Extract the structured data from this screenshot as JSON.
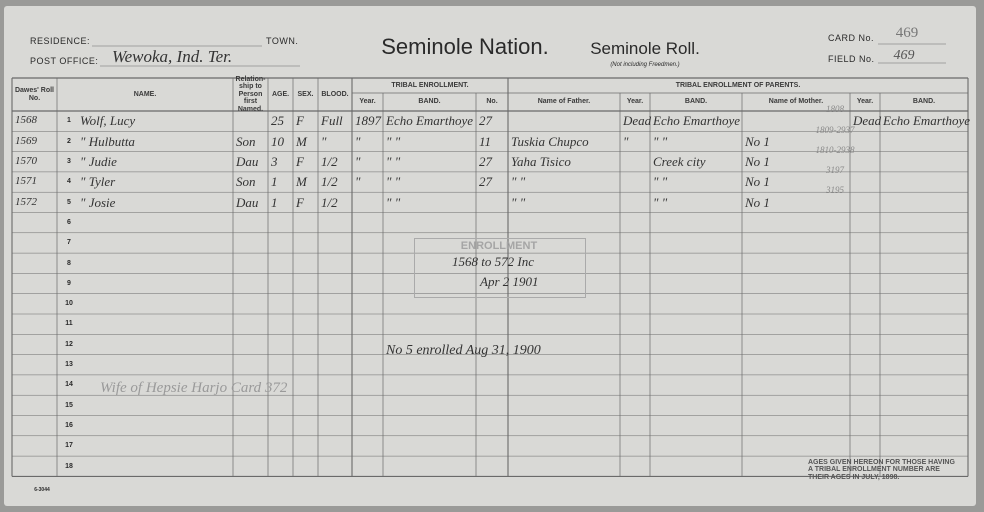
{
  "header": {
    "residence_label": "RESIDENCE:",
    "town_label": "TOWN.",
    "post_office_label": "POST OFFICE:",
    "post_office": "Wewoka, Ind. Ter.",
    "title": "Seminole Nation.",
    "roll_title": "Seminole Roll.",
    "roll_note": "(Not including Freedmen.)",
    "card_label": "CARD No.",
    "card_no": "469",
    "field_label": "FIELD No.",
    "field_no": "469"
  },
  "columns": {
    "roll": "Dawes' Roll No.",
    "name": "NAME.",
    "relation": "Relation-ship to Person first Named.",
    "age": "AGE.",
    "sex": "SEX.",
    "blood": "BLOOD.",
    "tribal_group": "TRIBAL ENROLLMENT.",
    "year": "Year.",
    "band": "BAND.",
    "no": "No.",
    "parents_group": "TRIBAL ENROLLMENT OF PARENTS.",
    "father": "Name of Father.",
    "f_year": "Year.",
    "f_band": "BAND.",
    "mother": "Name of Mother.",
    "m_year": "Year.",
    "m_band": "BAND."
  },
  "line_numbers": [
    "1",
    "2",
    "3",
    "4",
    "5",
    "6",
    "7",
    "8",
    "9",
    "10",
    "11",
    "12",
    "13",
    "14",
    "15",
    "16",
    "17",
    "18"
  ],
  "rows": [
    {
      "roll": "1568",
      "name": "Wolf, Lucy",
      "age": "25",
      "sex": "F",
      "blood": "Full",
      "year": "1897",
      "band": "Echo Emarthoye",
      "no": "27",
      "f_year": "Dead",
      "f_band": "Echo Emarthoye",
      "m_year": "Dead",
      "m_band": "Echo Emarthoye"
    },
    {
      "roll": "1569",
      "name": "\" Hulbutta",
      "relation": "Son",
      "age": "10",
      "sex": "M",
      "blood": "\"",
      "year": "\"",
      "band": "\"    \"",
      "no": "11",
      "father": "Tuskia Chupco",
      "f_year": "\"",
      "f_band": "\"    \"",
      "mother": "No 1"
    },
    {
      "roll": "1570",
      "name": "\" Judie",
      "relation": "Dau",
      "age": "3",
      "sex": "F",
      "blood": "1/2",
      "year": "\"",
      "band": "\"    \"",
      "no": "27",
      "father": "Yaha Tisico",
      "f_band": "Creek city",
      "mother": "No 1"
    },
    {
      "roll": "1571",
      "name": "\" Tyler",
      "relation": "Son",
      "age": "1",
      "sex": "M",
      "blood": "1/2",
      "year": "\"",
      "band": "\"    \"",
      "no": "27",
      "father": "\"    \"",
      "f_band": "\"    \"",
      "mother": "No 1"
    },
    {
      "roll": "1572",
      "name": "\" Josie",
      "relation": "Dau",
      "age": "1",
      "sex": "F",
      "blood": "1/2",
      "band": "\"    \"",
      "father": "\"    \"",
      "f_band": "\"    \"",
      "mother": "No 1"
    }
  ],
  "pencil_notes": [
    "1808",
    "1809-2937",
    "1810-2938",
    "3197",
    "3195"
  ],
  "stamp": {
    "title": "ENROLLMENT",
    "range": "1568 to 572 Inc",
    "date": "Apr 2 1901"
  },
  "enrolled_note": "No 5 enrolled Aug 31, 1900",
  "wife_note": "Wife of Hepsie Harjo Card 372",
  "footer_note": "AGES GIVEN HEREON FOR THOSE HAVING A TRIBAL ENROLLMENT NUMBER ARE THEIR AGES IN JULY, 1898.",
  "form_no": "6-3044"
}
